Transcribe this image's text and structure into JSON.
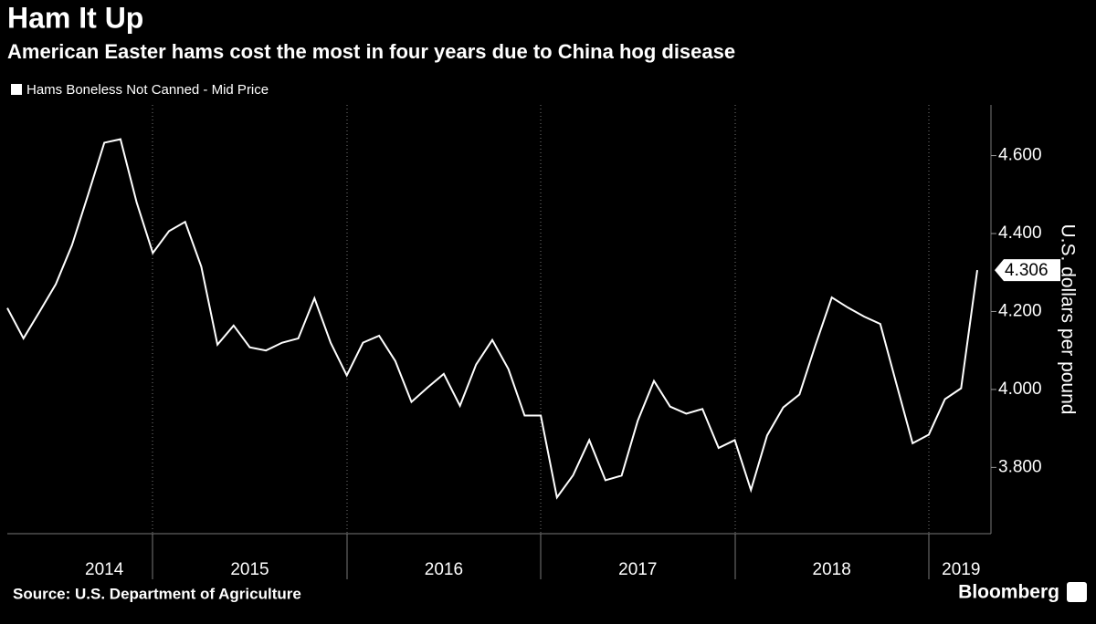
{
  "chart_data": {
    "type": "line",
    "title": "Ham It Up",
    "subtitle": "American Easter hams cost the most in four years due to China hog disease",
    "y_axis_label": "U.S. dollars per pound",
    "source": "Source: U.S. Department of Agriculture",
    "brand": "Bloomberg",
    "categories": [
      null,
      null,
      null,
      null,
      null,
      null,
      "2014",
      null,
      null,
      null,
      null,
      null,
      null,
      null,
      null,
      "2015",
      null,
      null,
      null,
      null,
      null,
      null,
      null,
      null,
      null,
      null,
      null,
      "2016",
      null,
      null,
      null,
      null,
      null,
      null,
      null,
      null,
      null,
      null,
      null,
      "2017",
      null,
      null,
      null,
      null,
      null,
      null,
      null,
      null,
      null,
      null,
      null,
      "2018",
      null,
      null,
      null,
      null,
      null,
      null,
      null,
      "2019",
      null
    ],
    "series": [
      {
        "name": "Hams Boneless Not Canned - Mid Price",
        "color": "#ffffff",
        "values": [
          4.209,
          4.131,
          4.2,
          4.27,
          4.37,
          4.5,
          4.633,
          4.642,
          4.48,
          4.35,
          4.406,
          4.43,
          4.315,
          4.115,
          4.164,
          4.108,
          4.1,
          4.12,
          4.131,
          4.234,
          4.12,
          4.036,
          4.12,
          4.138,
          4.073,
          3.968,
          4.005,
          4.04,
          3.958,
          4.064,
          4.127,
          4.052,
          3.933,
          3.933,
          3.723,
          3.78,
          3.87,
          3.767,
          3.779,
          3.92,
          4.022,
          3.956,
          3.938,
          3.95,
          3.85,
          3.87,
          3.742,
          3.882,
          3.954,
          3.987,
          4.115,
          4.236,
          4.21,
          4.187,
          4.168,
          4.014,
          3.862,
          3.884,
          3.975,
          4.003,
          4.306
        ]
      }
    ],
    "ylim": [
      3.63,
      4.73
    ],
    "yticks": [
      {
        "value": 3.8,
        "label": "3.800"
      },
      {
        "value": 4.0,
        "label": "4.000"
      },
      {
        "value": 4.2,
        "label": "4.200"
      },
      {
        "value": 4.4,
        "label": "4.400"
      },
      {
        "value": 4.6,
        "label": "4.600"
      }
    ],
    "legend": "top-left"
  }
}
